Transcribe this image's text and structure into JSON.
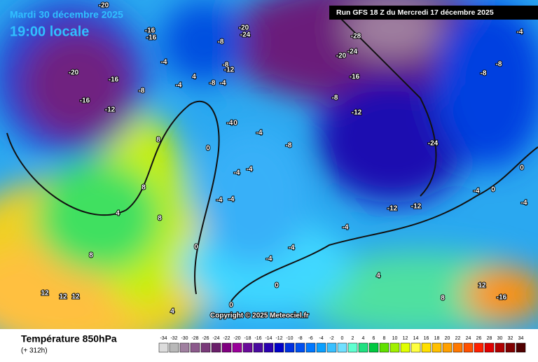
{
  "header": {
    "date": "Mardi 30 décembre 2025",
    "time": "19:00 locale",
    "run": "Run GFS 18 Z du Mercredi 17 décembre 2025",
    "copyright": "Copyright © 2025 Meteociel.fr"
  },
  "map": {
    "contour_labels": [
      "-20",
      "-24",
      "-8",
      "-4",
      "4",
      "-8",
      "-4",
      "-12",
      "-8",
      "-4",
      "-4",
      "0",
      "-4",
      "-8",
      "-4",
      "-4",
      "-4",
      "-4",
      "-8",
      "-12",
      "-16",
      "-20",
      "-24",
      "-28",
      "-24",
      "-12",
      "-12",
      "-4",
      "0",
      "0",
      "0",
      "0",
      "-4",
      "-4",
      "8",
      "8",
      "8",
      "8",
      "12",
      "12",
      "12",
      "4",
      "4",
      "8",
      "12",
      "-16",
      "-8",
      "-8",
      "-4",
      "-4",
      "0",
      "0",
      "-4",
      "4",
      "-20",
      "-20",
      "-16",
      "-16",
      "-12",
      "-8",
      "-16",
      "-16"
    ]
  },
  "legend": {
    "title": "Température 850hPa",
    "subtitle": "(+ 312h)",
    "values": [
      -34,
      -32,
      -30,
      -28,
      -26,
      -24,
      -22,
      -20,
      -18,
      -16,
      -14,
      -12,
      -10,
      -8,
      -6,
      -4,
      -2,
      0,
      2,
      4,
      6,
      8,
      10,
      12,
      14,
      16,
      18,
      20,
      22,
      24,
      26,
      28,
      30,
      32,
      34
    ],
    "colors": [
      "#dcdcdc",
      "#b8b8b8",
      "#a080a0",
      "#8c5a8c",
      "#7a3a7a",
      "#6a1f6a",
      "#800080",
      "#9a009a",
      "#6a0a9a",
      "#4a0aa0",
      "#2a00b0",
      "#0000c8",
      "#0030e0",
      "#0050f0",
      "#0078ff",
      "#0aa0ff",
      "#38c0ff",
      "#70e0ff",
      "#60ffd0",
      "#20e080",
      "#00c840",
      "#60e000",
      "#a0f000",
      "#e0ff00",
      "#ffff40",
      "#ffe000",
      "#ffc000",
      "#ffa000",
      "#ff7800",
      "#ff5000",
      "#ff2000",
      "#e00000",
      "#b00000",
      "#800000",
      "#500000"
    ]
  }
}
